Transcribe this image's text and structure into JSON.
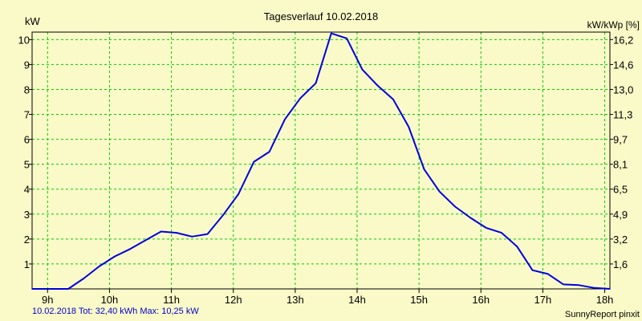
{
  "colors": {
    "background": "#fafac8",
    "grid": "#00cc00",
    "line": "#0000dd",
    "axis": "#000000",
    "footer_text": "#0000cc"
  },
  "chart_data": {
    "type": "line",
    "title": "Tagesverlauf 10.02.2018",
    "ylabel_left": "kW",
    "ylabel_right": "kW/kWp [%]",
    "xlim": [
      8.75,
      18.0833
    ],
    "ylim": [
      0,
      10.3
    ],
    "grid": true,
    "x_ticks": [
      {
        "value": 9,
        "label": "9h"
      },
      {
        "value": 10,
        "label": "10h"
      },
      {
        "value": 11,
        "label": "11h"
      },
      {
        "value": 12,
        "label": "12h"
      },
      {
        "value": 13,
        "label": "13h"
      },
      {
        "value": 14,
        "label": "14h"
      },
      {
        "value": 15,
        "label": "15h"
      },
      {
        "value": 16,
        "label": "16h"
      },
      {
        "value": 17,
        "label": "17h"
      },
      {
        "value": 18,
        "label": "18h"
      }
    ],
    "y_ticks_left": [
      {
        "value": 1,
        "label": "1"
      },
      {
        "value": 2,
        "label": "2"
      },
      {
        "value": 3,
        "label": "3"
      },
      {
        "value": 4,
        "label": "4"
      },
      {
        "value": 5,
        "label": "5"
      },
      {
        "value": 6,
        "label": "6"
      },
      {
        "value": 7,
        "label": "7"
      },
      {
        "value": 8,
        "label": "8"
      },
      {
        "value": 9,
        "label": "9"
      },
      {
        "value": 10,
        "label": "10"
      }
    ],
    "y_ticks_right": [
      {
        "value": 1.0,
        "label": "1,6"
      },
      {
        "value": 2.0,
        "label": "3,2"
      },
      {
        "value": 3.0,
        "label": "4,9"
      },
      {
        "value": 4.0,
        "label": "6,5"
      },
      {
        "value": 5.0,
        "label": "8,1"
      },
      {
        "value": 6.0,
        "label": "9,7"
      },
      {
        "value": 7.0,
        "label": "11,3"
      },
      {
        "value": 8.0,
        "label": "13,0"
      },
      {
        "value": 9.0,
        "label": "14,6"
      },
      {
        "value": 10.0,
        "label": "16,2"
      }
    ],
    "series": [
      {
        "points": [
          {
            "x": 8.75,
            "y": 0.0
          },
          {
            "x": 9.333,
            "y": 0.0
          },
          {
            "x": 9.583,
            "y": 0.42
          },
          {
            "x": 9.833,
            "y": 0.9
          },
          {
            "x": 10.083,
            "y": 1.3
          },
          {
            "x": 10.333,
            "y": 1.6
          },
          {
            "x": 10.583,
            "y": 1.95
          },
          {
            "x": 10.833,
            "y": 2.3
          },
          {
            "x": 11.083,
            "y": 2.25
          },
          {
            "x": 11.333,
            "y": 2.1
          },
          {
            "x": 11.583,
            "y": 2.2
          },
          {
            "x": 11.833,
            "y": 2.95
          },
          {
            "x": 12.083,
            "y": 3.8
          },
          {
            "x": 12.333,
            "y": 5.1
          },
          {
            "x": 12.583,
            "y": 5.5
          },
          {
            "x": 12.833,
            "y": 6.8
          },
          {
            "x": 13.083,
            "y": 7.65
          },
          {
            "x": 13.333,
            "y": 8.25
          },
          {
            "x": 13.583,
            "y": 10.25
          },
          {
            "x": 13.833,
            "y": 10.05
          },
          {
            "x": 14.083,
            "y": 8.8
          },
          {
            "x": 14.333,
            "y": 8.15
          },
          {
            "x": 14.583,
            "y": 7.6
          },
          {
            "x": 14.833,
            "y": 6.5
          },
          {
            "x": 15.083,
            "y": 4.8
          },
          {
            "x": 15.333,
            "y": 3.9
          },
          {
            "x": 15.583,
            "y": 3.3
          },
          {
            "x": 15.833,
            "y": 2.85
          },
          {
            "x": 16.083,
            "y": 2.45
          },
          {
            "x": 16.333,
            "y": 2.25
          },
          {
            "x": 16.583,
            "y": 1.7
          },
          {
            "x": 16.833,
            "y": 0.75
          },
          {
            "x": 17.083,
            "y": 0.6
          },
          {
            "x": 17.333,
            "y": 0.18
          },
          {
            "x": 17.583,
            "y": 0.15
          },
          {
            "x": 17.833,
            "y": 0.04
          },
          {
            "x": 18.083,
            "y": 0.0
          }
        ]
      }
    ]
  },
  "footer": {
    "summary": "10.02.2018 Tot: 32,40 kWh Max: 10,25 kW",
    "credit": "SunnyReport pinxit"
  }
}
